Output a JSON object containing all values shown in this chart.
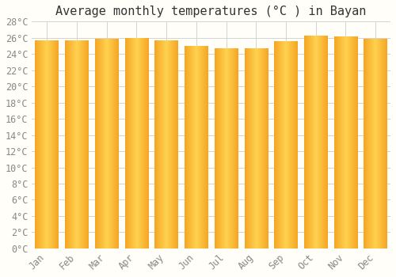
{
  "title": "Average monthly temperatures (°C ) in Bayan",
  "months": [
    "Jan",
    "Feb",
    "Mar",
    "Apr",
    "May",
    "Jun",
    "Jul",
    "Aug",
    "Sep",
    "Oct",
    "Nov",
    "Dec"
  ],
  "temperatures": [
    25.6,
    25.6,
    25.8,
    25.9,
    25.6,
    25.0,
    24.7,
    24.7,
    25.5,
    26.2,
    26.1,
    25.8
  ],
  "bar_color_edge": "#F5A623",
  "bar_color_center": "#FFD060",
  "background_color": "#FFFEF8",
  "grid_color": "#CCCCCC",
  "ylim": [
    0,
    28
  ],
  "ytick_step": 2,
  "title_fontsize": 11,
  "tick_fontsize": 8.5,
  "font_family": "monospace"
}
